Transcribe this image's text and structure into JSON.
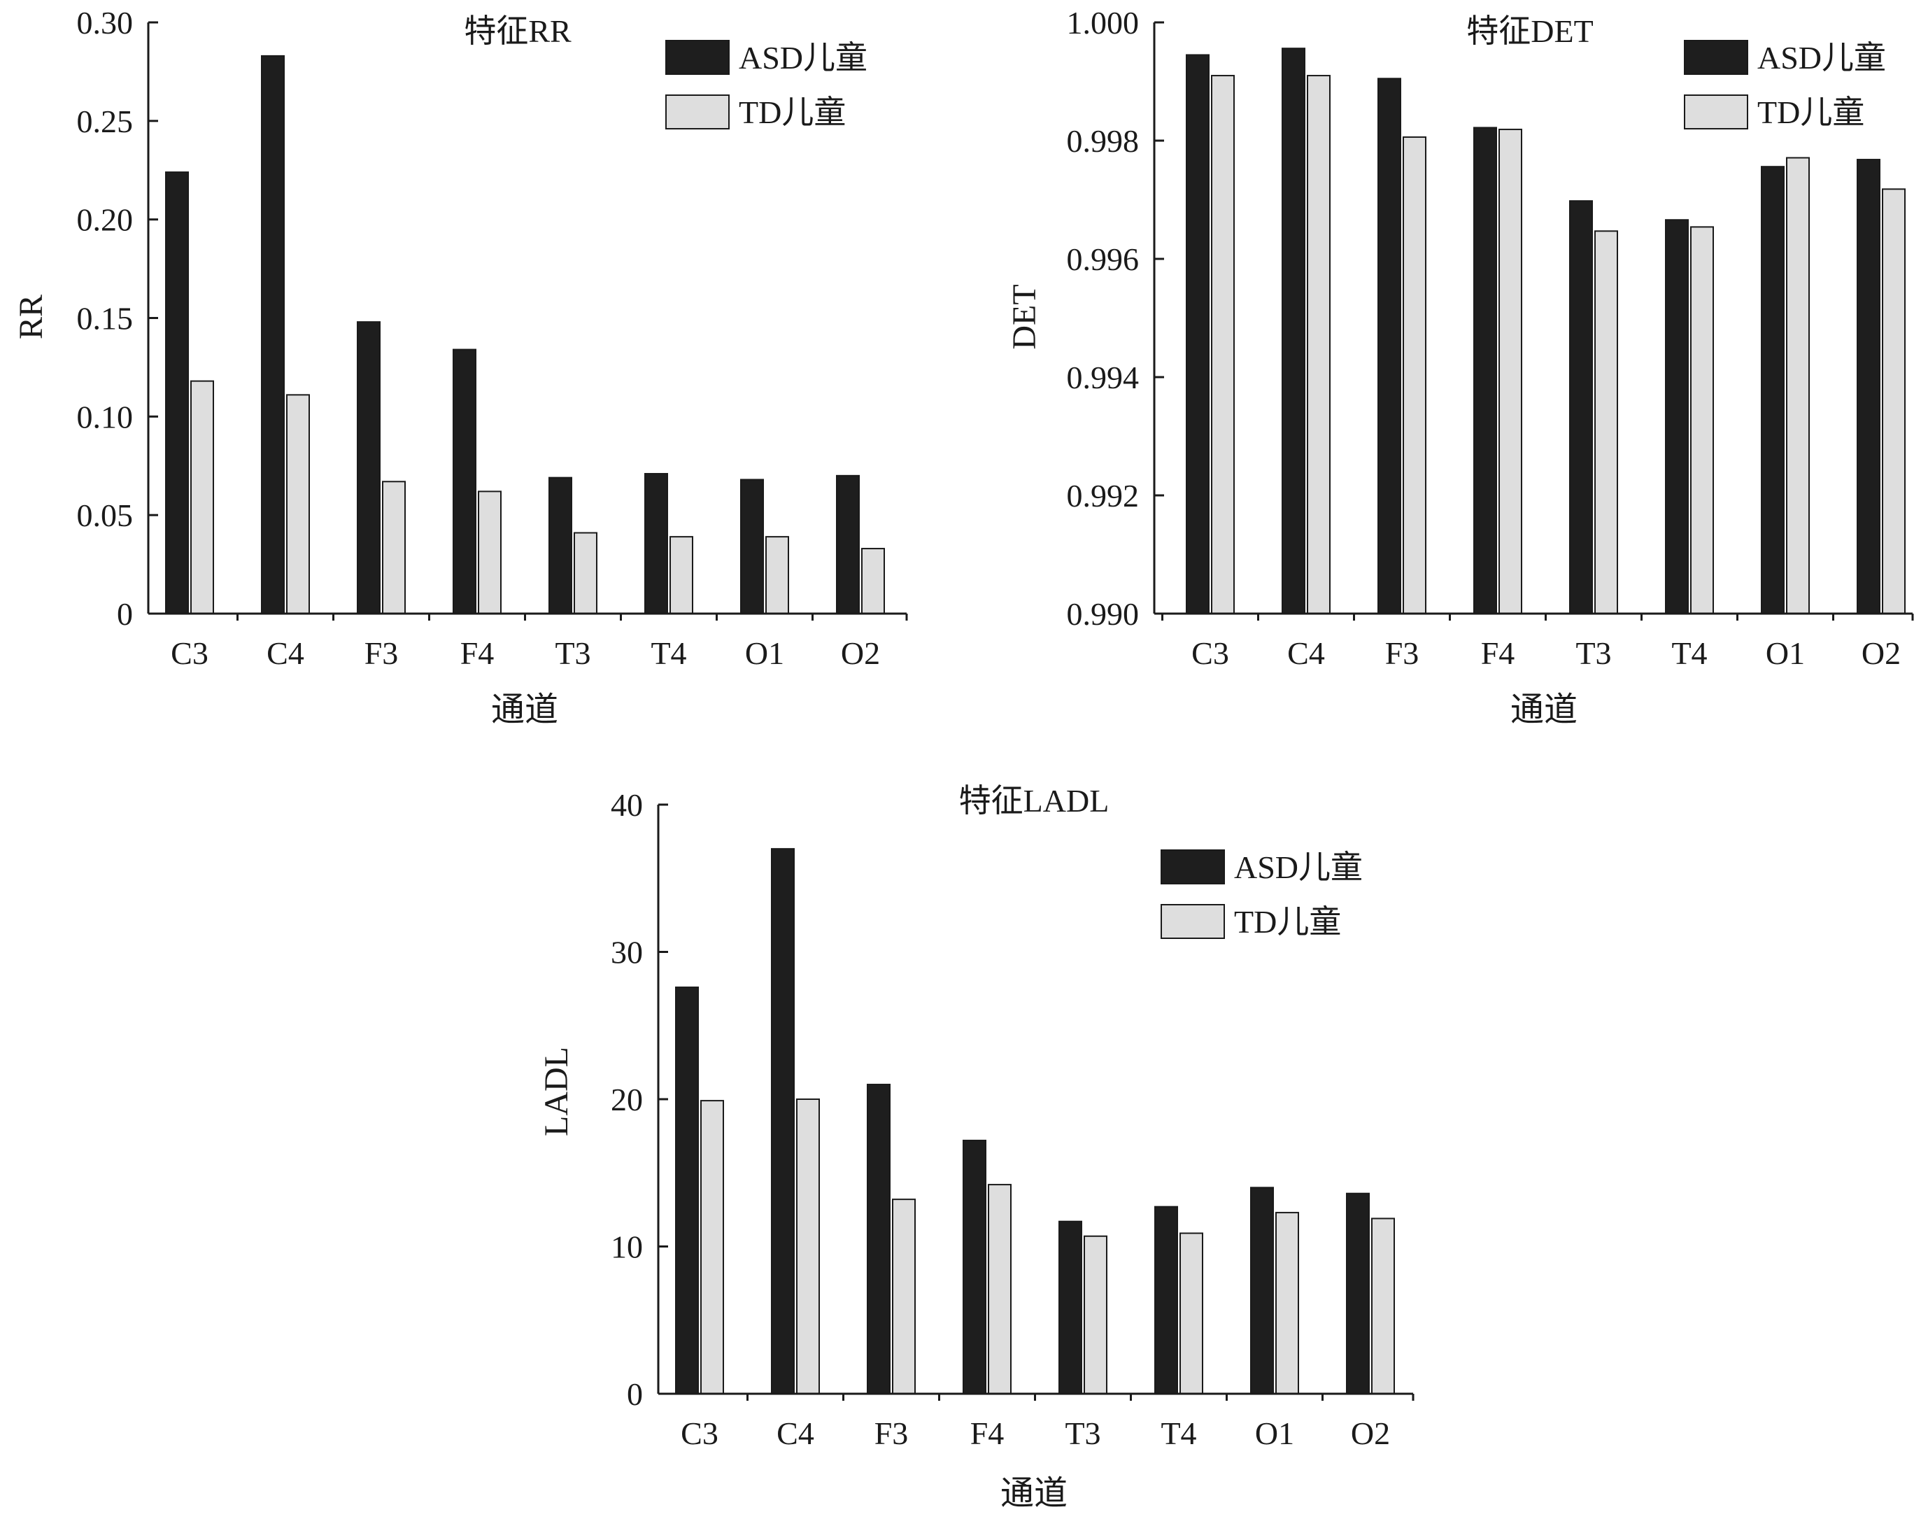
{
  "colors": {
    "asd": "#1e1e1e",
    "td": "#dedede",
    "axis": "#1a1a1a"
  },
  "chart_data": [
    {
      "type": "bar",
      "title": "特征RR",
      "xlabel": "通道",
      "ylabel": "RR",
      "categories": [
        "C3",
        "C4",
        "F3",
        "F4",
        "T3",
        "T4",
        "O1",
        "O2"
      ],
      "ylim": [
        0,
        0.3
      ],
      "yticks": [
        0,
        0.05,
        0.1,
        0.15,
        0.2,
        0.25,
        0.3
      ],
      "ytick_labels": [
        "0",
        "0.05",
        "0.10",
        "0.15",
        "0.20",
        "0.25",
        "0.30"
      ],
      "legend_position": "top-right",
      "grid": false,
      "series": [
        {
          "name": "ASD儿童",
          "values": [
            0.224,
            0.283,
            0.148,
            0.134,
            0.069,
            0.071,
            0.068,
            0.07
          ]
        },
        {
          "name": "TD儿童",
          "values": [
            0.118,
            0.111,
            0.067,
            0.062,
            0.041,
            0.039,
            0.039,
            0.033
          ]
        }
      ]
    },
    {
      "type": "bar",
      "title": "特征DET",
      "xlabel": "通道",
      "ylabel": "DET",
      "categories": [
        "C3",
        "C4",
        "F3",
        "F4",
        "T3",
        "T4",
        "O1",
        "O2"
      ],
      "ylim": [
        0.99,
        1.0
      ],
      "yticks": [
        0.99,
        0.992,
        0.994,
        0.996,
        0.998,
        1.0
      ],
      "ytick_labels": [
        "0.990",
        "0.992",
        "0.994",
        "0.996",
        "0.998",
        "1.000"
      ],
      "legend_position": "top-right",
      "grid": false,
      "series": [
        {
          "name": "ASD儿童",
          "values": [
            0.99945,
            0.99956,
            0.99905,
            0.99822,
            0.99698,
            0.99666,
            0.99756,
            0.99768
          ]
        },
        {
          "name": "TD儿童",
          "values": [
            0.9991,
            0.9991,
            0.99806,
            0.99819,
            0.99647,
            0.99654,
            0.99771,
            0.99718
          ]
        }
      ]
    },
    {
      "type": "bar",
      "title": "特征LADL",
      "xlabel": "通道",
      "ylabel": "LADL",
      "categories": [
        "C3",
        "C4",
        "F3",
        "F4",
        "T3",
        "T4",
        "O1",
        "O2"
      ],
      "ylim": [
        0,
        40
      ],
      "yticks": [
        0,
        10,
        20,
        30,
        40
      ],
      "ytick_labels": [
        "0",
        "10",
        "20",
        "30",
        "40"
      ],
      "legend_position": "top-right",
      "grid": false,
      "series": [
        {
          "name": "ASD儿童",
          "values": [
            27.6,
            37.0,
            21.0,
            17.2,
            11.7,
            12.7,
            14.0,
            13.6
          ]
        },
        {
          "name": "TD儿童",
          "values": [
            19.9,
            20.0,
            13.2,
            14.2,
            10.7,
            10.9,
            12.3,
            11.9
          ]
        }
      ]
    }
  ]
}
